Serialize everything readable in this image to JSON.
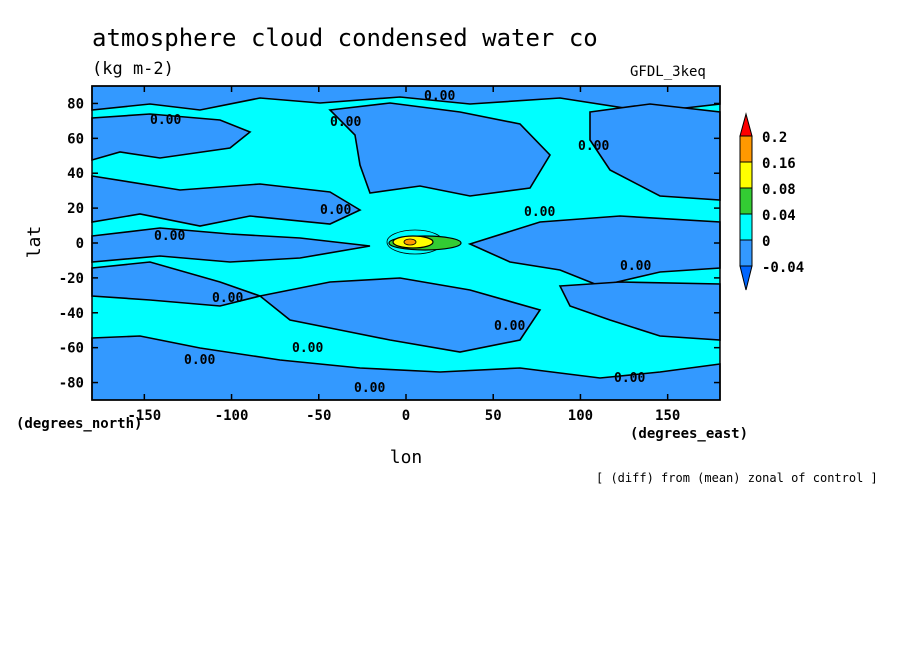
{
  "chart_data": {
    "type": "heatmap",
    "title": "atmosphere cloud condensed water co",
    "units": "(kg m-2)",
    "model": "GFDL_3keq",
    "xlabel": "lon",
    "ylabel": "lat",
    "x_units": "(degrees_east)",
    "y_units": "(degrees_north)",
    "xlim": [
      -180,
      180
    ],
    "ylim": [
      -90,
      90
    ],
    "x_ticks": [
      -150,
      -100,
      -50,
      0,
      50,
      100,
      150
    ],
    "y_ticks": [
      80,
      60,
      40,
      20,
      0,
      -20,
      -40,
      -60,
      -80
    ],
    "contour_interval_labels": [
      "0.00"
    ],
    "colorbar": {
      "levels": [
        "0.2",
        "0.16",
        "0.08",
        "0.04",
        "0",
        "-0.04"
      ],
      "colors": {
        "above_0.2": "#ff0000",
        "0.16_to_0.2": "#ff9900",
        "0.08_to_0.16": "#ffff00",
        "0.04_to_0.08": "#33cc33",
        "0_to_0.04": "#00ffff",
        "-0.04_to_0": "#3399ff",
        "below_-0.04": "#0066ff"
      }
    },
    "features": [
      {
        "region": "equatorial maximum",
        "lon_range": [
          -10,
          30
        ],
        "lat_range": [
          -5,
          5
        ],
        "peak_class": "0.08 to 0.16"
      },
      {
        "region": "background",
        "values_class": "-0.04 to 0.04"
      }
    ],
    "grid": false,
    "legend": "right"
  },
  "footnote": "[ (diff) from (mean) zonal of control ]"
}
